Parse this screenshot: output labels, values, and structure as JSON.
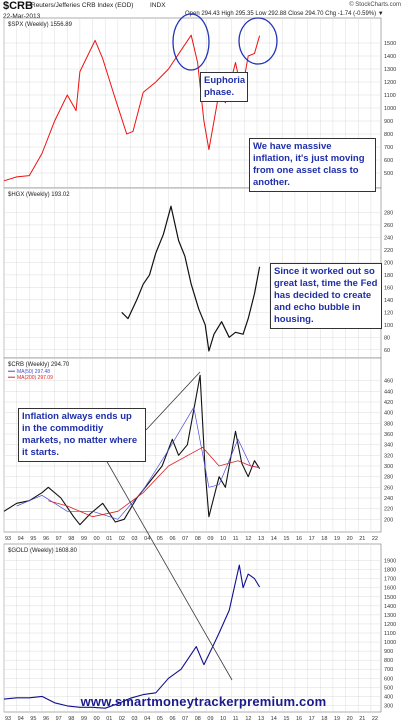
{
  "header": {
    "symbol": "$CRB",
    "name": "Reuters/Jefferies CRB Index (EOD)",
    "exchange": "INDX",
    "date": "22-Mar-2013",
    "ohlc": "Open 294.43  High 295.35  Low 292.88  Close 294.70  Chg -1.74 (-0.59%) ▼",
    "brand": "© StockCharts.com"
  },
  "annotations": {
    "euphoria": "Euphoria phase.",
    "inflation": "We have massive inflation, it's just moving from one asset class to another.",
    "housing": "Since it worked out so great last, time the Fed has decided to create and echo bubble in housing.",
    "commodity": "Inflation always ends up in the commoditiy markets, no matter where it starts."
  },
  "watermark": "www.smartmoneytrackerpremium.com",
  "colors": {
    "spx": "#ee1111",
    "hgx": "#111111",
    "crb": "#111111",
    "ma50": "#4a4ad8",
    "ma200": "#dd2222",
    "gold": "#101090",
    "grid": "#dcdcdc",
    "text": "#1f2fa8",
    "axis": "#333333"
  },
  "chart_data": [
    {
      "type": "line",
      "panel_label": "$SPX (Weekly) 1556.89",
      "series": [
        {
          "name": "$SPX",
          "x": [
            1993,
            1994,
            1995,
            1996,
            1997,
            1998,
            1998.7,
            1999,
            2000.2,
            2000.8,
            2001.7,
            2002.7,
            2003.2,
            2004,
            2005,
            2006,
            2007.8,
            2008.3,
            2008.8,
            2009.2,
            2010,
            2010.5,
            2011.3,
            2011.8,
            2012.3,
            2012.8,
            2013.2
          ],
          "values": [
            440,
            470,
            480,
            650,
            900,
            1100,
            980,
            1280,
            1520,
            1380,
            1100,
            800,
            820,
            1120,
            1200,
            1300,
            1560,
            1350,
            900,
            680,
            1120,
            1040,
            1350,
            1120,
            1400,
            1420,
            1556
          ]
        }
      ],
      "xlim": [
        1993,
        2022.8
      ],
      "ylim": [
        400,
        1600
      ],
      "yticks": [
        500,
        600,
        700,
        800,
        900,
        1000,
        1100,
        1200,
        1300,
        1400,
        1500
      ]
    },
    {
      "type": "line",
      "panel_label": "$HGX (Weekly) 193.02",
      "series": [
        {
          "name": "$HGX",
          "x": [
            2002.3,
            2002.8,
            2003.5,
            2004,
            2004.5,
            2005,
            2005.6,
            2006.2,
            2006.8,
            2007.3,
            2007.8,
            2008.4,
            2008.9,
            2009.2,
            2009.6,
            2010.2,
            2010.8,
            2011.3,
            2011.9,
            2012.3,
            2012.8,
            2013.2
          ],
          "values": [
            120,
            110,
            140,
            165,
            180,
            215,
            245,
            290,
            235,
            210,
            165,
            125,
            100,
            58,
            85,
            105,
            80,
            88,
            85,
            110,
            150,
            193
          ]
        }
      ],
      "xlim": [
        1993,
        2022.8
      ],
      "ylim": [
        50,
        300
      ],
      "yticks": [
        60,
        80,
        100,
        120,
        140,
        160,
        180,
        200,
        220,
        240,
        260,
        280
      ]
    },
    {
      "type": "line",
      "panel_label": "$CRB (Weekly) 294.70",
      "series": [
        {
          "name": "$CRB",
          "x": [
            1993,
            1994,
            1995,
            1996,
            1996.5,
            1997.5,
            1998.5,
            1999,
            1999.8,
            2000.8,
            2001.8,
            2002.5,
            2003.5,
            2004.5,
            2005.5,
            2006.3,
            2006.8,
            2007.5,
            2008.5,
            2008.9,
            2009.2,
            2010,
            2010.5,
            2011.3,
            2011.8,
            2012.3,
            2012.8,
            2013.2
          ],
          "values": [
            215,
            230,
            235,
            250,
            260,
            240,
            205,
            190,
            210,
            230,
            195,
            200,
            240,
            270,
            300,
            350,
            320,
            340,
            470,
            290,
            205,
            280,
            260,
            365,
            305,
            280,
            310,
            295
          ]
        },
        {
          "name": "MA(50) 297.48",
          "x": [
            1994,
            1996,
            1998,
            2000,
            2002,
            2004,
            2006,
            2008,
            2009.2,
            2010,
            2011.5,
            2012.5,
            2013.2
          ],
          "values": [
            225,
            245,
            215,
            215,
            200,
            255,
            330,
            410,
            260,
            265,
            350,
            300,
            297
          ]
        },
        {
          "name": "MA(200) 297.09",
          "x": [
            1996.5,
            1998,
            2000,
            2002,
            2004,
            2006,
            2008.7,
            2010,
            2011.5,
            2012.5,
            2013.2
          ],
          "values": [
            235,
            225,
            205,
            215,
            250,
            300,
            335,
            300,
            310,
            300,
            297
          ]
        }
      ],
      "xlim": [
        1993,
        2022.8
      ],
      "ylim": [
        180,
        480
      ],
      "yticks": [
        200,
        220,
        240,
        260,
        280,
        300,
        320,
        340,
        360,
        380,
        400,
        420,
        440,
        460
      ],
      "xticks": [
        "93",
        "94",
        "95",
        "96",
        "97",
        "98",
        "99",
        "00",
        "01",
        "02",
        "03",
        "04",
        "05",
        "06",
        "07",
        "08",
        "09",
        "10",
        "11",
        "12",
        "13",
        "14",
        "15",
        "16",
        "17",
        "18",
        "19",
        "20",
        "21",
        "22"
      ]
    },
    {
      "type": "line",
      "panel_label": "$GOLD (Weekly) 1608.80",
      "series": [
        {
          "name": "$GOLD",
          "x": [
            1993,
            1994,
            1995,
            1996,
            1997,
            1998,
            1999,
            2000,
            2001,
            2002,
            2003,
            2004,
            2005,
            2006,
            2007,
            2008.2,
            2008.8,
            2009.5,
            2010,
            2010.8,
            2011.6,
            2011.9,
            2012.3,
            2012.8,
            2013.2
          ],
          "values": [
            370,
            385,
            385,
            400,
            330,
            295,
            280,
            280,
            270,
            320,
            380,
            420,
            440,
            600,
            700,
            950,
            750,
            950,
            1100,
            1350,
            1850,
            1600,
            1750,
            1700,
            1608
          ]
        }
      ],
      "xlim": [
        1993,
        2022.8
      ],
      "ylim": [
        250,
        1950
      ],
      "yticks": [
        300,
        400,
        500,
        600,
        700,
        800,
        900,
        1000,
        1100,
        1200,
        1300,
        1400,
        1500,
        1600,
        1700,
        1800,
        1900
      ],
      "xticks": [
        "93",
        "94",
        "95",
        "96",
        "97",
        "98",
        "99",
        "00",
        "01",
        "02",
        "03",
        "04",
        "05",
        "06",
        "07",
        "08",
        "09",
        "10",
        "11",
        "12",
        "13",
        "14",
        "15",
        "16",
        "17",
        "18",
        "19",
        "20",
        "21",
        "22"
      ]
    }
  ]
}
